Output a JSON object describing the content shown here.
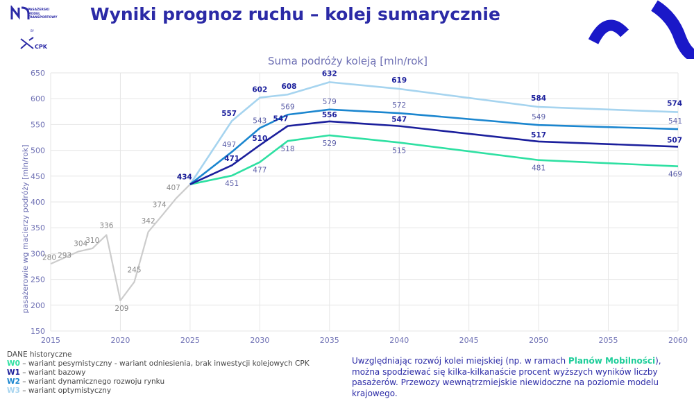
{
  "header": {
    "title": "Wyniki prognoz ruchu – kolej sumarycznie",
    "logo_lines": [
      "PASAŻERSKI",
      "MODEL",
      "TRANSPORTOWY"
    ],
    "logo_by": "BY",
    "logo_cpk": "CPK"
  },
  "colors": {
    "title": "#2b2aa6",
    "historic": "#cccccc",
    "W0": "#2ee0a2",
    "W1": "#1b1f9c",
    "W2": "#1b86cf",
    "W3": "#a6d4ef",
    "grid": "#e6e6e6",
    "axis_text": "#6d6fb3"
  },
  "chart_data": {
    "type": "line",
    "title": "Suma podróży koleją [mln/rok]",
    "xlabel": "",
    "ylabel": "pasażerowie wg macierzy podróży [mln/rok]",
    "xlim": [
      2015,
      2060
    ],
    "ylim": [
      150,
      650
    ],
    "x_ticks": [
      2015,
      2020,
      2025,
      2030,
      2035,
      2040,
      2045,
      2050,
      2055,
      2060
    ],
    "y_ticks": [
      150,
      200,
      250,
      300,
      350,
      400,
      450,
      500,
      550,
      600,
      650
    ],
    "grid": true,
    "series": [
      {
        "name": "DANE historyczne",
        "key": "historic",
        "x": [
          2015,
          2017,
          2018,
          2019,
          2020,
          2021,
          2022,
          2023,
          2024,
          2025
        ],
        "y": [
          280,
          304,
          310,
          336,
          209,
          245,
          342,
          374,
          407,
          434
        ],
        "labels": [
          "280",
          "304",
          "310",
          "336",
          "209",
          "245",
          "342",
          "374",
          "407",
          "434"
        ]
      },
      {
        "name": "W0",
        "key": "W0",
        "x": [
          2025,
          2028,
          2030,
          2032,
          2035,
          2040,
          2050,
          2060
        ],
        "y": [
          434,
          451,
          477,
          518,
          529,
          515,
          481,
          469
        ],
        "labels": [
          "",
          "451",
          "477",
          "518",
          "529",
          "515",
          "481",
          "469"
        ]
      },
      {
        "name": "W1",
        "key": "W1",
        "x": [
          2025,
          2028,
          2030,
          2032,
          2035,
          2040,
          2050,
          2060
        ],
        "y": [
          434,
          471,
          510,
          547,
          556,
          547,
          517,
          507
        ],
        "labels": [
          "434",
          "471",
          "510",
          "547",
          "556",
          "547",
          "517",
          "507"
        ]
      },
      {
        "name": "W2",
        "key": "W2",
        "x": [
          2025,
          2028,
          2030,
          2032,
          2035,
          2040,
          2050,
          2060
        ],
        "y": [
          434,
          497,
          543,
          569,
          579,
          572,
          549,
          541
        ],
        "labels": [
          "",
          "497",
          "543",
          "569",
          "579",
          "572",
          "549",
          "541"
        ]
      },
      {
        "name": "W3",
        "key": "W3",
        "x": [
          2025,
          2028,
          2030,
          2032,
          2035,
          2040,
          2050,
          2060
        ],
        "y": [
          434,
          557,
          602,
          608,
          632,
          619,
          584,
          574
        ],
        "labels": [
          "",
          "557",
          "602",
          "608",
          "632",
          "619",
          "584",
          "574"
        ]
      }
    ],
    "extra_labels": [
      {
        "x": 2016,
        "y": 293,
        "text": "293"
      }
    ]
  },
  "legend": {
    "historic": "DANE historyczne",
    "items": [
      {
        "code": "W0",
        "text": " – wariant pesymistyczny - wariant odniesienia, brak inwestycji kolejowych CPK",
        "color": "#2ee0a2"
      },
      {
        "code": "W1",
        "text": " – wariant bazowy",
        "color": "#1b1f9c"
      },
      {
        "code": "W2",
        "text": " – wariant dynamicznego rozwoju rynku",
        "color": "#1b86cf"
      },
      {
        "code": "W3",
        "text": " – wariant optymistyczny",
        "color": "#a6d4ef"
      }
    ]
  },
  "note": {
    "before": "Uwzględniając rozwój kolei miejskiej (np. w ramach ",
    "highlight": "Planów Mobilności",
    "after": "), można spodziewać się kilka-kilkanaście procent wyższych wyników liczby pasażerów. Przewozy wewnątrzmiejskie niewidoczne na poziomie modelu krajowego."
  }
}
